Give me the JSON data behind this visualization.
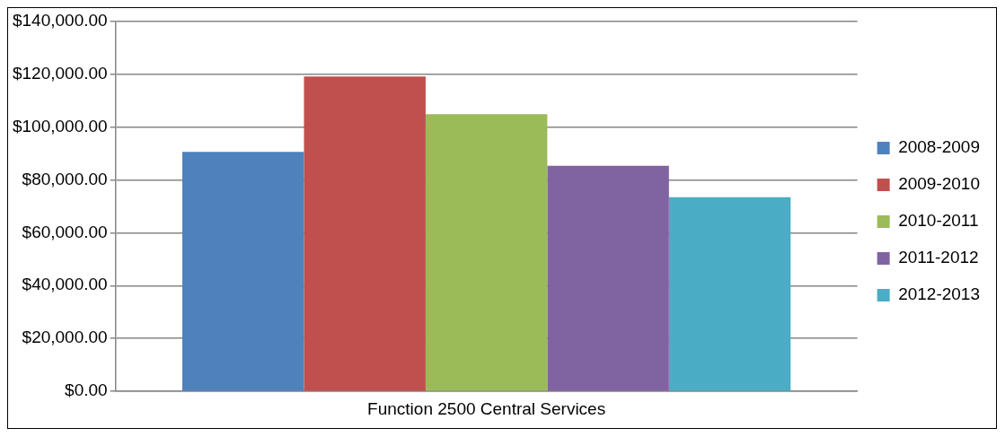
{
  "chart_data": {
    "type": "bar",
    "categories": [
      "Function 2500 Central Services"
    ],
    "series": [
      {
        "name": "2008-2009",
        "color": "#4f81bd",
        "values": [
          90500
        ]
      },
      {
        "name": "2009-2010",
        "color": "#c0504d",
        "values": [
          119000
        ]
      },
      {
        "name": "2010-2011",
        "color": "#9bbb59",
        "values": [
          104800
        ]
      },
      {
        "name": "2011-2012",
        "color": "#8064a2",
        "values": [
          85300
        ]
      },
      {
        "name": "2012-2013",
        "color": "#4bacc6",
        "values": [
          73400
        ]
      }
    ],
    "ylim": [
      0,
      140000
    ],
    "yticks": [
      {
        "value": 0,
        "label": "$0.00"
      },
      {
        "value": 20000,
        "label": "$20,000.00"
      },
      {
        "value": 40000,
        "label": "$40,000.00"
      },
      {
        "value": 60000,
        "label": "$60,000.00"
      },
      {
        "value": 80000,
        "label": "$80,000.00"
      },
      {
        "value": 100000,
        "label": "$100,000.00"
      },
      {
        "value": 120000,
        "label": "$120,000.00"
      },
      {
        "value": 140000,
        "label": "$140,000.00"
      }
    ],
    "grid": "y",
    "legend": "right"
  }
}
